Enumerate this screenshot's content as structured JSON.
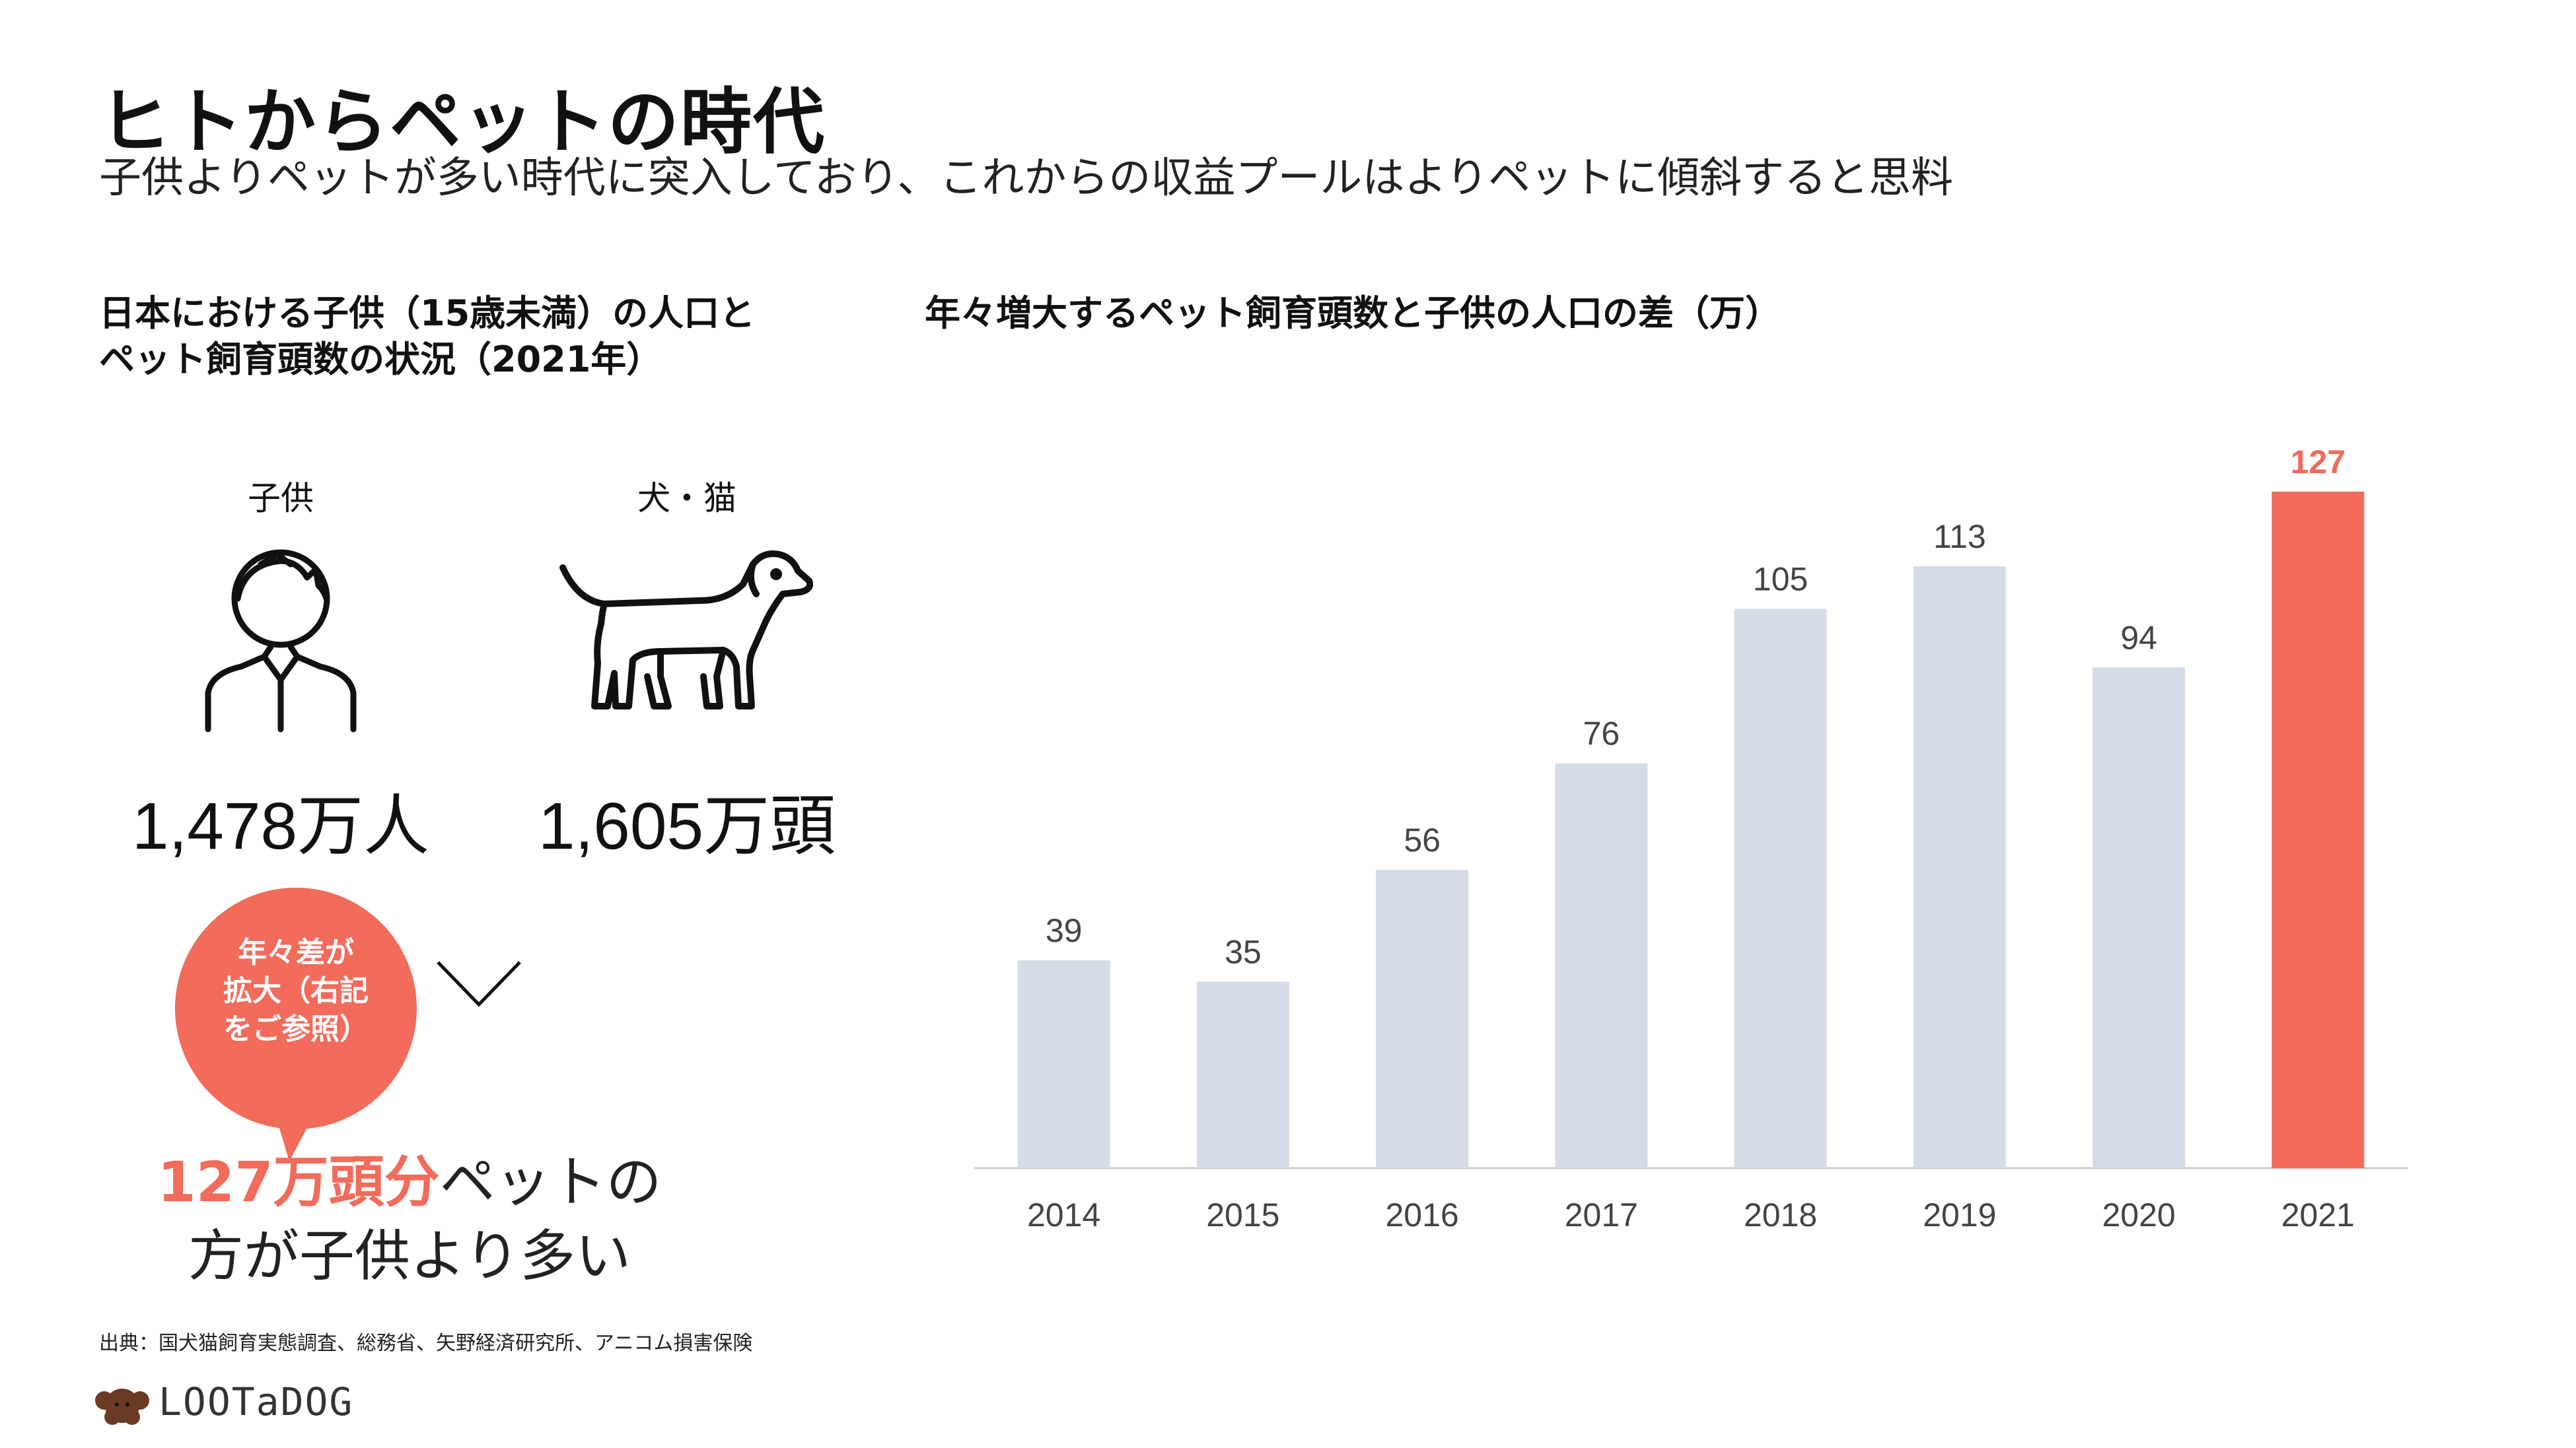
{
  "header": {
    "title": "ヒトからペットの時代",
    "subtitle": "子供よりペットが多い時代に突入しており、これからの収益プールはよりペットに傾斜すると思料"
  },
  "left_panel": {
    "title_line1": "日本における子供（15歳未満）の人口と",
    "title_line2": "ペット飼育頭数の状況（2021年）",
    "children_label": "子供",
    "pets_label": "犬・猫",
    "children_value": "1,478万人",
    "pets_value": "1,605万頭",
    "bubble_line1": "年々差が",
    "bubble_line2": "拡大（右記",
    "bubble_line3": "をご参照）",
    "conclusion_highlight": "127万頭分",
    "conclusion_rest1": "ペットの",
    "conclusion_line2": "方が子供より多い"
  },
  "chart_title": "年々増大するペット飼育頭数と子供の人口の差（万）",
  "chart_data": {
    "type": "bar",
    "title": "年々増大するペット飼育頭数と子供の人口の差（万）",
    "categories": [
      "2014",
      "2015",
      "2016",
      "2017",
      "2018",
      "2019",
      "2020",
      "2021"
    ],
    "values": [
      39,
      35,
      56,
      76,
      105,
      113,
      94,
      127
    ],
    "ylim": [
      0,
      140
    ],
    "grid": false,
    "highlight_index": 7,
    "colors": {
      "bar": "#d5dce6",
      "highlight": "#f26b5b",
      "axis": "#cccccc",
      "label": "#444444"
    }
  },
  "footer": {
    "source": "出典：国犬猫飼育実態調査、総務省、矢野経済研究所、アニコム損害保険",
    "logo_text": "LOOTaDOG"
  },
  "colors": {
    "accent": "#f26b5b",
    "text": "#111111"
  }
}
